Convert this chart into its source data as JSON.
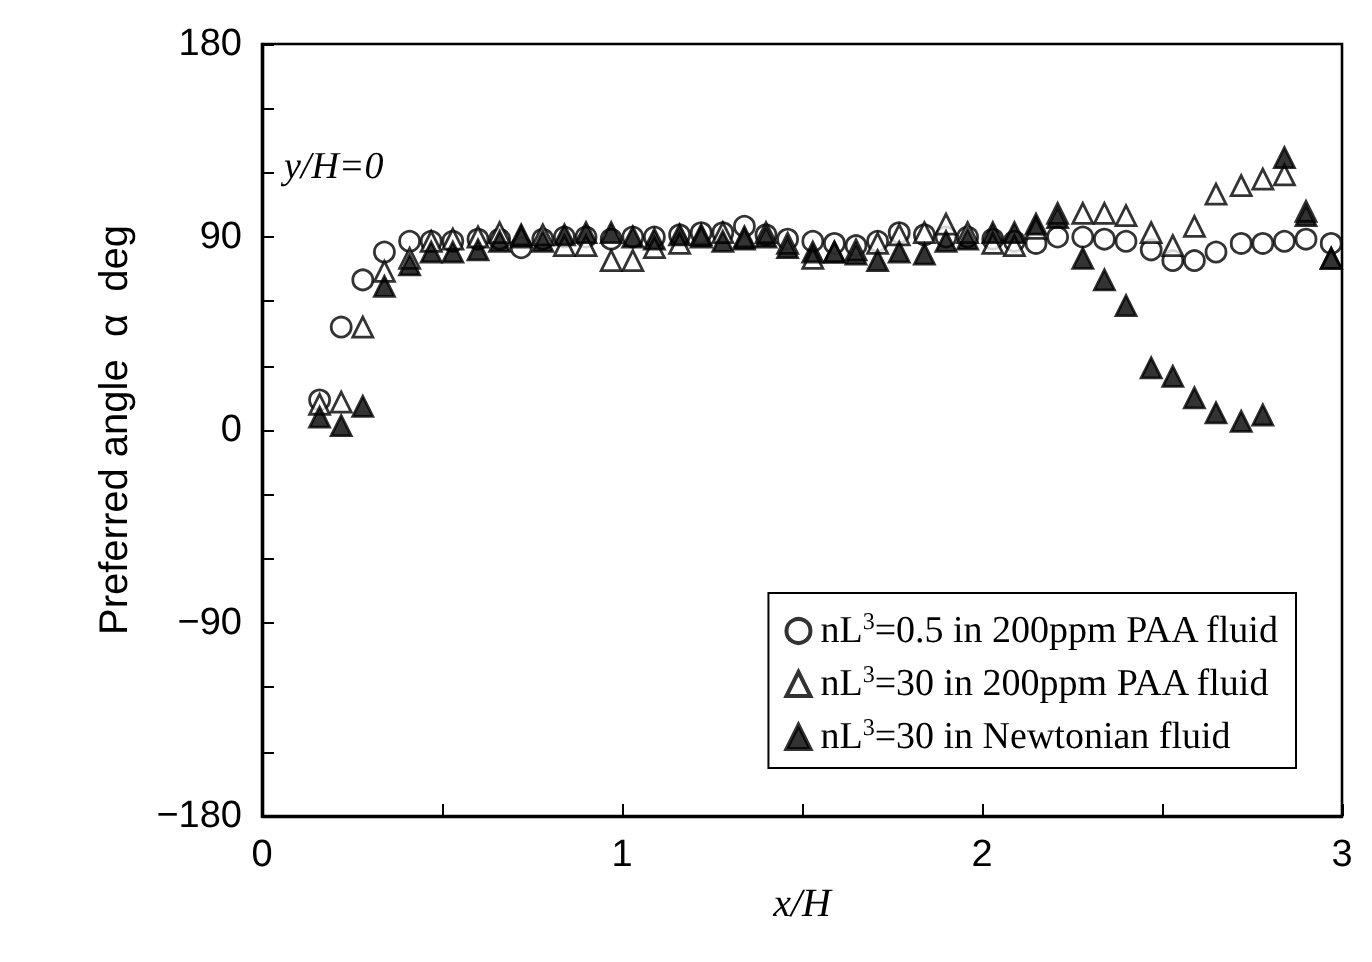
{
  "chart_data": {
    "type": "scatter",
    "xlabel": "x/H",
    "ylabel": "Preferred angle  α  deg",
    "annotations": [
      "y/H=0"
    ],
    "x": [
      0.16,
      0.22,
      0.28,
      0.34,
      0.41,
      0.47,
      0.53,
      0.6,
      0.66,
      0.72,
      0.78,
      0.84,
      0.9,
      0.97,
      1.03,
      1.09,
      1.16,
      1.22,
      1.28,
      1.34,
      1.4,
      1.46,
      1.53,
      1.59,
      1.65,
      1.71,
      1.77,
      1.84,
      1.9,
      1.96,
      2.03,
      2.09,
      2.15,
      2.21,
      2.28,
      2.34,
      2.4,
      2.47,
      2.53,
      2.59,
      2.65,
      2.72,
      2.78,
      2.84,
      2.9,
      2.97
    ],
    "series": [
      {
        "name": "nL$^{3}$=0.5 in 200ppm PAA fluid",
        "color": "#000000",
        "marker": "circle",
        "values": [
          14,
          48,
          70,
          83,
          88,
          88,
          88,
          89,
          89,
          85,
          89,
          90,
          90,
          89,
          90,
          90,
          91,
          92,
          92,
          95,
          91,
          89,
          88,
          87,
          86,
          88,
          92,
          91,
          90,
          90,
          89,
          88,
          87,
          90,
          90,
          89,
          88,
          84,
          79,
          79,
          83,
          87,
          87,
          88,
          89,
          87
        ]
      },
      {
        "name": "nL$^{3}$=30 in 200ppm PAA fluid",
        "color": "#000000",
        "marker": "triangle",
        "values": [
          12,
          13,
          48,
          74,
          80,
          88,
          89,
          90,
          92,
          91,
          91,
          86,
          86,
          79,
          79,
          85,
          87,
          91,
          92,
          90,
          92,
          87,
          80,
          83,
          84,
          87,
          91,
          92,
          96,
          92,
          87,
          86,
          94,
          101,
          101,
          101,
          100,
          92,
          86,
          95,
          110,
          114,
          117,
          119,
          102,
          80
        ]
      },
      {
        "name": "nL$^{3}$=30 in Newtonian fluid",
        "color": "#000000",
        "marker": "triangle",
        "values": [
          6,
          2,
          11,
          67,
          77,
          83,
          83,
          84,
          88,
          90,
          88,
          91,
          92,
          92,
          90,
          89,
          91,
          90,
          88,
          89,
          90,
          85,
          83,
          83,
          82,
          79,
          83,
          82,
          88,
          89,
          92,
          92,
          96,
          99,
          80,
          70,
          58,
          29,
          25,
          15,
          8,
          4,
          7,
          127,
          100,
          80
        ]
      }
    ],
    "xlim": [
      0,
      3
    ],
    "xticks": [
      0,
      {
        "value": 0.5,
        "label": null
      },
      1,
      {
        "value": 1.5,
        "label": null
      },
      2,
      {
        "value": 2.5,
        "label": null
      },
      3
    ],
    "ylim": [
      -180,
      180
    ],
    "yticks": [
      -180,
      {
        "value": -150,
        "label": null
      },
      {
        "value": -120,
        "label": null
      },
      -90,
      {
        "value": -60,
        "label": null
      },
      {
        "value": -30,
        "label": null
      },
      0,
      {
        "value": 30,
        "label": null
      },
      {
        "value": 60,
        "label": null
      },
      90,
      {
        "value": 120,
        "label": null
      },
      {
        "value": 150,
        "label": null
      },
      180
    ],
    "grid": false,
    "legend": "bottom right"
  }
}
